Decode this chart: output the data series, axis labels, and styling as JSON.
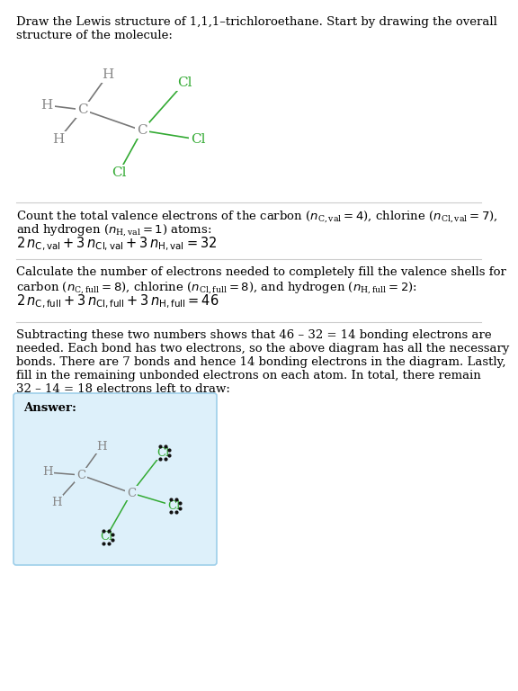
{
  "bg_color": "#ffffff",
  "answer_bg_color": "#ddf0fa",
  "answer_border_color": "#9ecfea",
  "black_text": "#000000",
  "gray_atom": "#888888",
  "green_atom": "#33aa33",
  "line_color": "#777777",
  "green_line": "#33aa33",
  "title_line1": "Draw the Lewis structure of 1,1,1–trichloroethane. Start by drawing the overall",
  "title_line2": "structure of the molecule:",
  "s1_line1": "Count the total valence electrons of the carbon (",
  "s1_line1b": "= 4), chlorine (",
  "s1_line1c": "= 7),",
  "s1_line2a": "and hydrogen (",
  "s1_line2b": "= 1) atoms:",
  "s1_line3": "2 ",
  "s2_line1": "Calculate the number of electrons needed to completely fill the valence shells for",
  "s2_line2a": "carbon (",
  "s2_line2b": "= 8), chlorine (",
  "s2_line2c": "= 8), and hydrogen (",
  "s2_line2d": "= 2):",
  "s2_line3": "2 ",
  "s3_line1": "Subtracting these two numbers shows that 46 – 32 = 14 bonding electrons are",
  "s3_line2": "needed. Each bond has two electrons, so the above diagram has all the necessary",
  "s3_line3": "bonds. There are 7 bonds and hence 14 bonding electrons in the diagram. Lastly,",
  "s3_line4": "fill in the remaining unbonded electrons on each atom. In total, there remain",
  "s3_line5": "32 – 14 = 18 electrons left to draw:",
  "answer_label": "Answer:"
}
